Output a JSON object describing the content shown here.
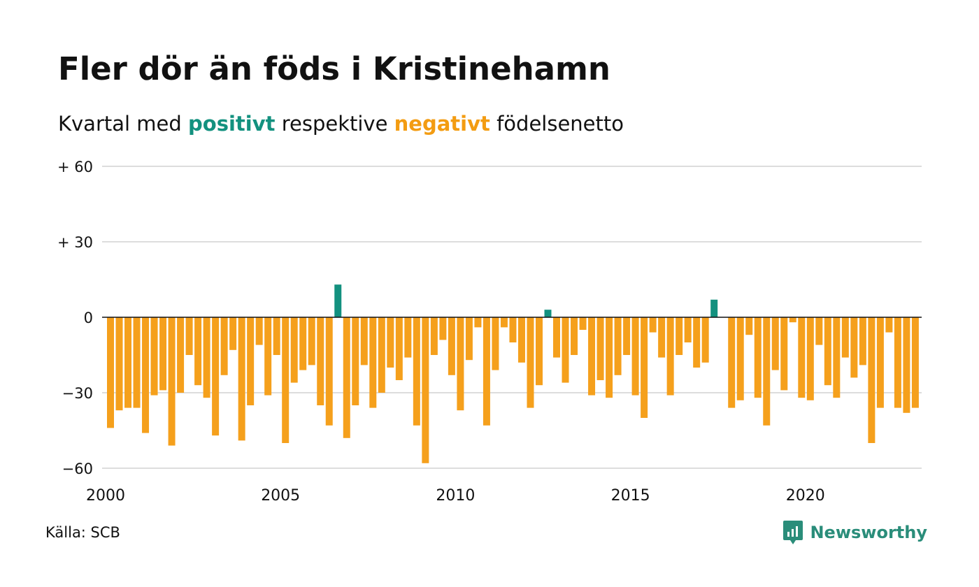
{
  "header": {
    "title": "Fler dör än föds i Kristinehamn",
    "subtitle_pre": "Kvartal med ",
    "subtitle_pos": "positivt",
    "subtitle_mid": " respektive ",
    "subtitle_neg": "negativt",
    "subtitle_post": " födelsenetto"
  },
  "footer": {
    "source": "Källa: SCB",
    "brand": "Newsworthy",
    "brand_icon": "bar-chart-speech-bubble-icon"
  },
  "colors": {
    "positive": "#13917f",
    "negative": "#f5a01c",
    "grid": "#dddddd",
    "zero_line": "#111111",
    "brand": "#2a8d7a"
  },
  "chart_data": {
    "type": "bar",
    "x_start_year": 2000,
    "periods_per_year": 4,
    "ylim": [
      -60,
      60
    ],
    "y_ticks": [
      {
        "value": 60,
        "label": "+ 60"
      },
      {
        "value": 30,
        "label": "+ 30"
      },
      {
        "value": 0,
        "label": "0"
      },
      {
        "value": -30,
        "label": "−30"
      },
      {
        "value": -60,
        "label": "−60"
      }
    ],
    "x_ticks": [
      "2000",
      "2005",
      "2010",
      "2015",
      "2020"
    ],
    "grid": true,
    "values": [
      -44,
      -37,
      -36,
      -36,
      -46,
      -31,
      -29,
      -51,
      -30,
      -15,
      -27,
      -32,
      -47,
      -23,
      -13,
      -49,
      -35,
      -11,
      -31,
      -15,
      -50,
      -26,
      -21,
      -19,
      -35,
      -43,
      13,
      -48,
      -35,
      -19,
      -36,
      -30,
      -20,
      -25,
      -16,
      -43,
      -58,
      -15,
      -9,
      -23,
      -37,
      -17,
      -4,
      -43,
      -21,
      -4,
      -10,
      -18,
      -36,
      -27,
      3,
      -16,
      -26,
      -15,
      -5,
      -31,
      -25,
      -32,
      -23,
      -15,
      -31,
      -40,
      -6,
      -16,
      -31,
      -15,
      -10,
      -20,
      -18,
      7,
      0,
      -36,
      -33,
      -7,
      -32,
      -43,
      -21,
      -29,
      -2,
      -32,
      -33,
      -11,
      -27,
      -32,
      -16,
      -24,
      -19,
      -50,
      -36,
      -6,
      -36,
      -38,
      -36
    ]
  }
}
